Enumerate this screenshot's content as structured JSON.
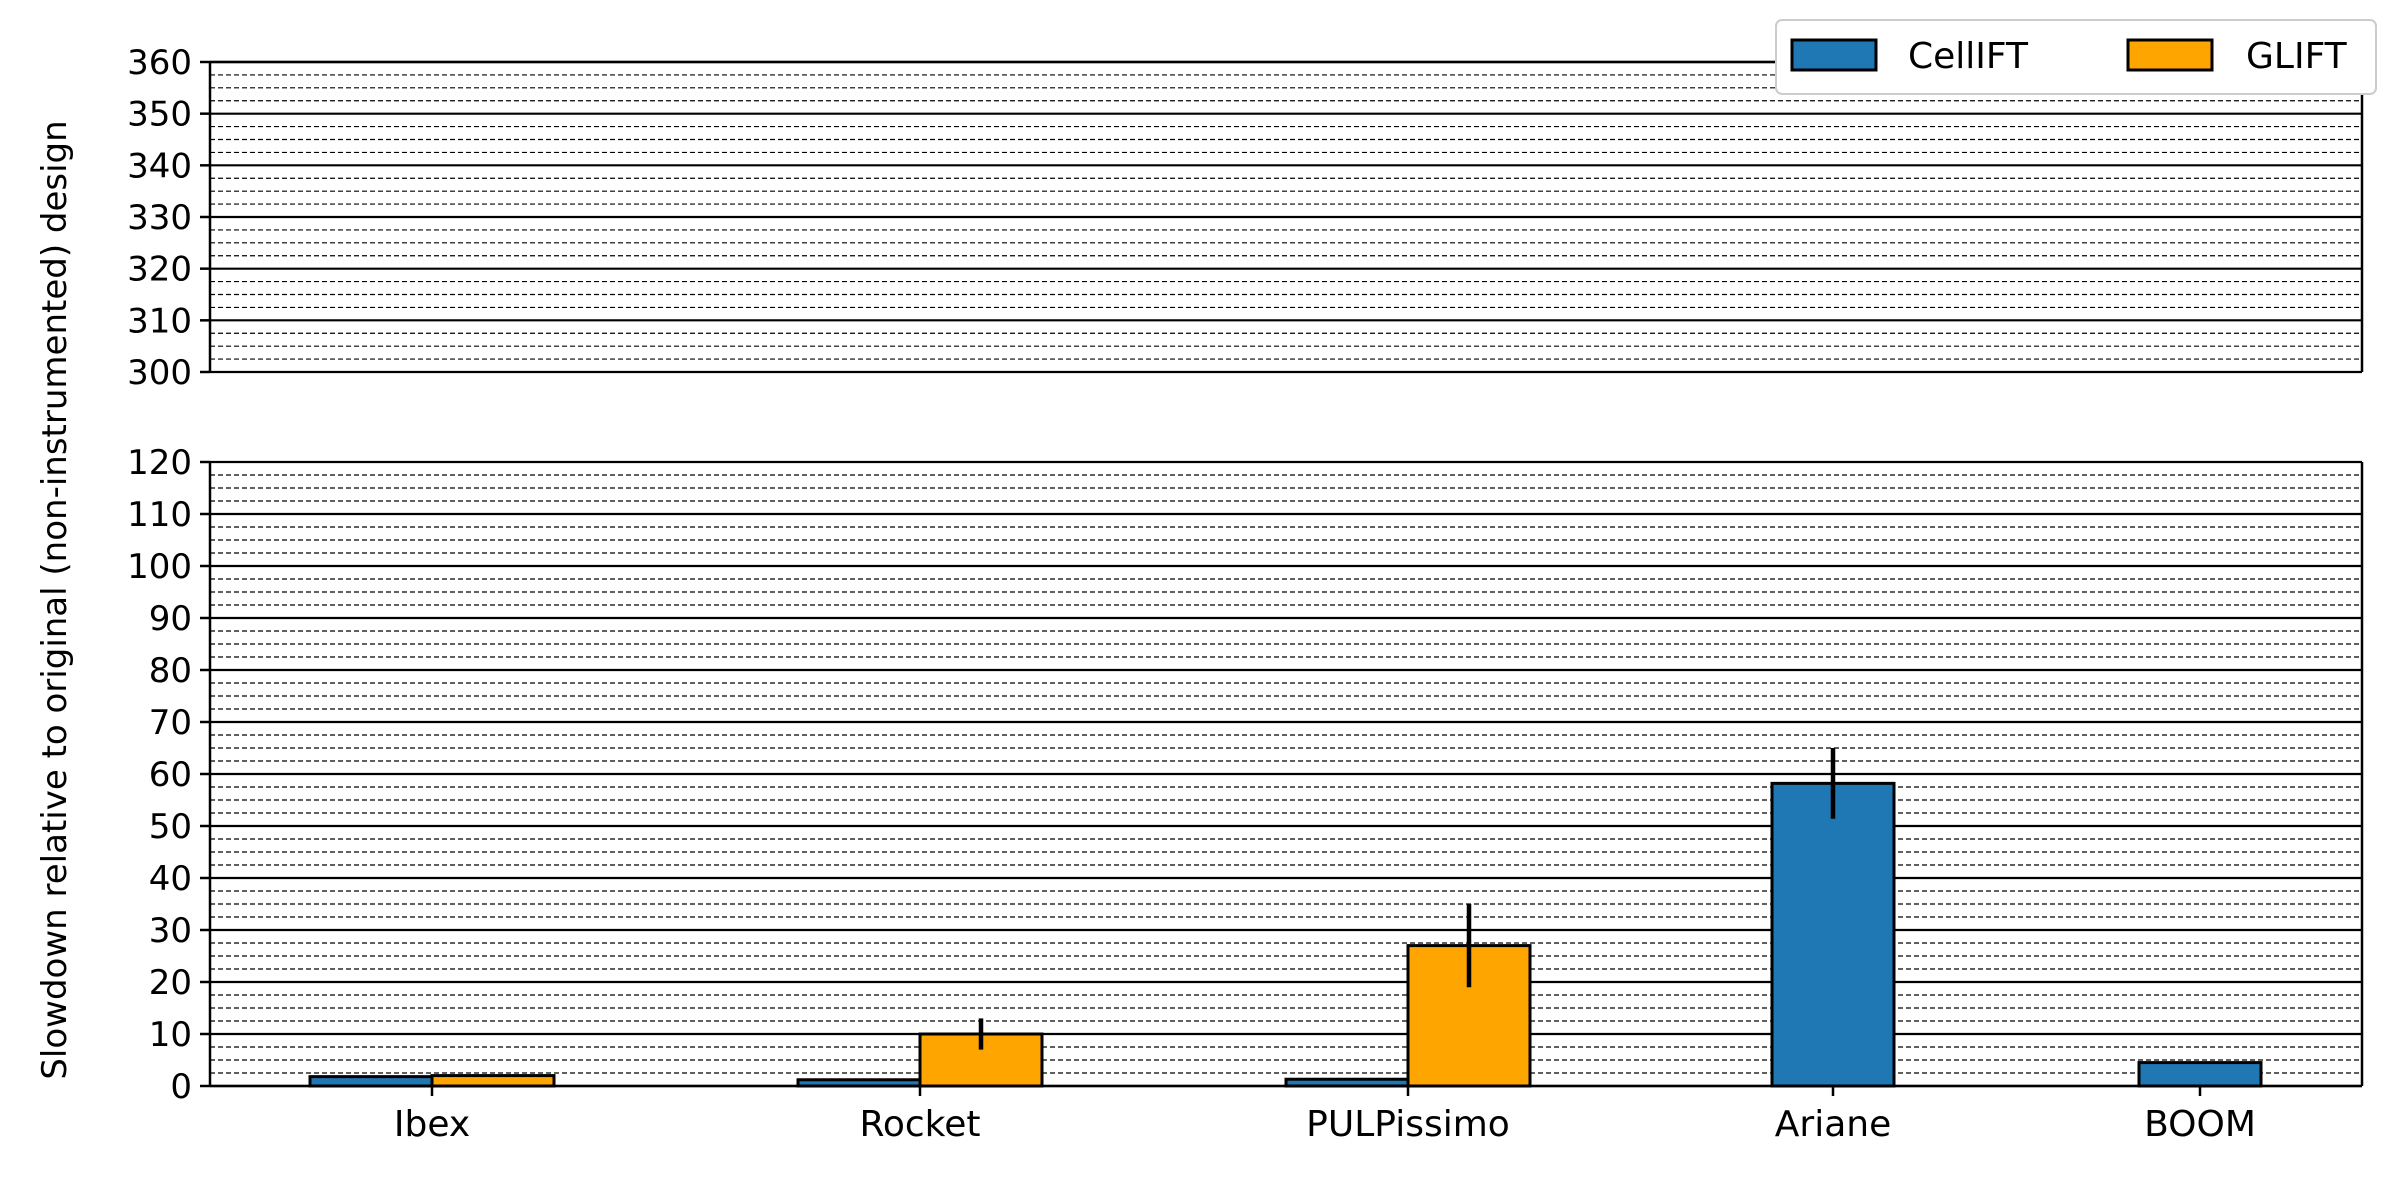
{
  "chart_data": {
    "type": "bar",
    "ylabel": "Slowdown relative to original (non-instrumented) design",
    "categories": [
      "Ibex",
      "Rocket",
      "PULPissimo",
      "Ariane",
      "BOOM"
    ],
    "series": [
      {
        "name": "CellIFT",
        "color": "#1f77b4",
        "values": [
          1.8,
          1.2,
          1.3,
          58.2,
          4.5
        ],
        "errors": [
          0,
          0,
          0,
          6.8,
          0
        ]
      },
      {
        "name": "GLIFT",
        "color": "#ffa500",
        "values": [
          2.0,
          10.0,
          27.0,
          null,
          null
        ],
        "errors": [
          0,
          3.0,
          8.0,
          0,
          0
        ]
      }
    ],
    "broken_axis": true,
    "upper_ylim": [
      300,
      360
    ],
    "lower_ylim": [
      0,
      120
    ],
    "upper_ticks": [
      300,
      310,
      320,
      330,
      340,
      350,
      360
    ],
    "lower_ticks": [
      0,
      10,
      20,
      30,
      40,
      50,
      60,
      70,
      80,
      90,
      100,
      110,
      120
    ],
    "grid": {
      "major": true,
      "minor": "dashed",
      "minor_step": 2.5
    },
    "legend": {
      "position": "top-right",
      "columns": 2
    }
  }
}
